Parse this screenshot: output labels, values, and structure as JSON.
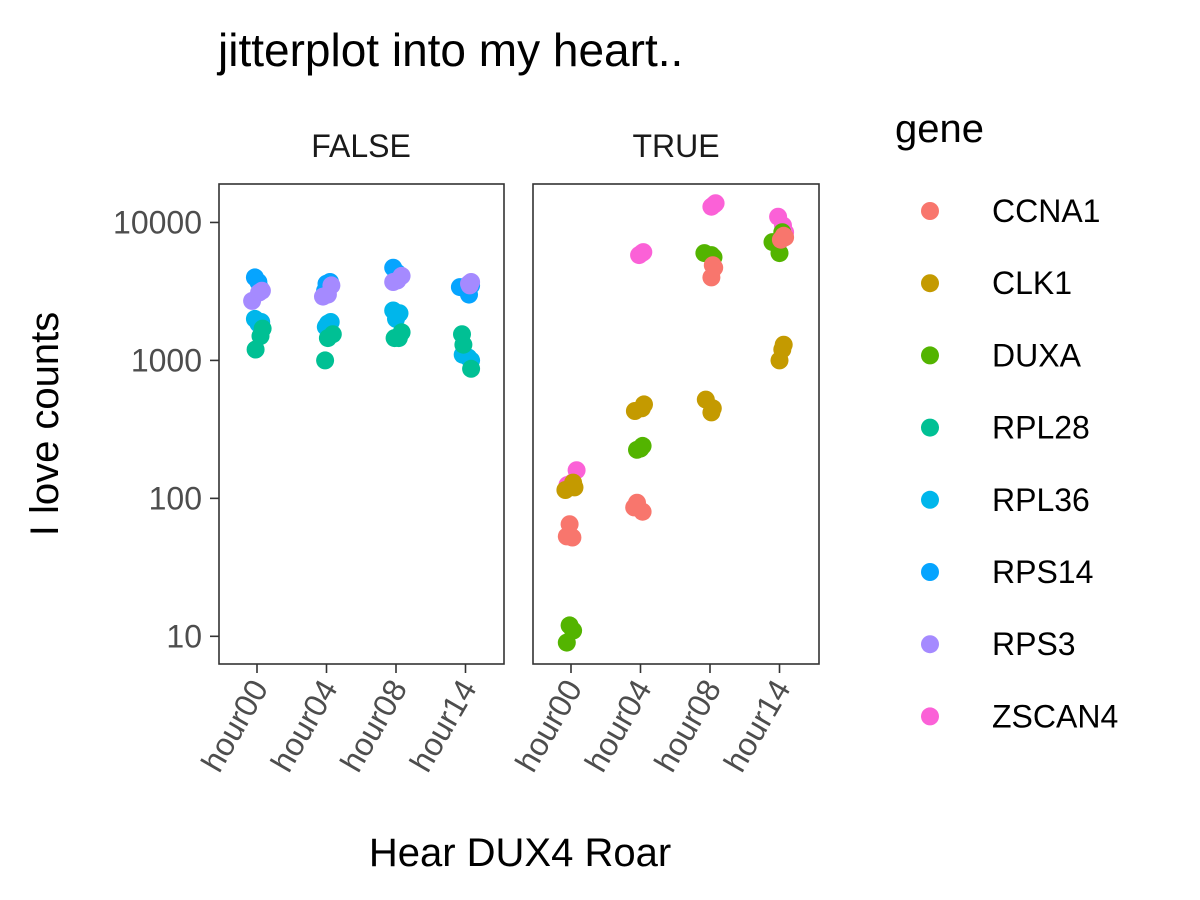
{
  "chart_data": {
    "type": "scatter",
    "title": "jitterplot  into my heart..",
    "xlabel": "Hear DUX4 Roar",
    "ylabel": "I love counts",
    "y_scale": "log10",
    "ylim": [
      6.3,
      19000
    ],
    "yticks": [
      10,
      100,
      1000,
      10000
    ],
    "ytick_labels": [
      "10",
      "100",
      "1000",
      "10000"
    ],
    "categories": [
      "hour00",
      "hour04",
      "hour08",
      "hour14"
    ],
    "facets": [
      "FALSE",
      "TRUE"
    ],
    "grid": false,
    "legend": {
      "title": "gene",
      "position": "right",
      "items": [
        {
          "name": "CCNA1",
          "color": "#F8766D"
        },
        {
          "name": "CLK1",
          "color": "#C49A00"
        },
        {
          "name": "DUXA",
          "color": "#53B400"
        },
        {
          "name": "RPL28",
          "color": "#00C094"
        },
        {
          "name": "RPL36",
          "color": "#00B6EB"
        },
        {
          "name": "RPS14",
          "color": "#06A4FF"
        },
        {
          "name": "RPS3",
          "color": "#A58AFF"
        },
        {
          "name": "ZSCAN4",
          "color": "#FB61D7"
        }
      ]
    },
    "series": [
      {
        "facet": "FALSE",
        "name": "RPS14",
        "points": [
          [
            "hour00",
            -0.03,
            4000
          ],
          [
            "hour00",
            0.02,
            3700
          ],
          [
            "hour00",
            0.05,
            3300
          ],
          [
            "hour04",
            0.0,
            3600
          ],
          [
            "hour04",
            0.05,
            3700
          ],
          [
            "hour04",
            -0.02,
            3200
          ],
          [
            "hour08",
            -0.04,
            4700
          ],
          [
            "hour08",
            0.02,
            4300
          ],
          [
            "hour08",
            0.05,
            4100
          ],
          [
            "hour14",
            -0.08,
            3400
          ],
          [
            "hour14",
            0.05,
            3000
          ],
          [
            "hour14",
            0.08,
            3500
          ]
        ]
      },
      {
        "facet": "FALSE",
        "name": "RPS3",
        "points": [
          [
            "hour00",
            -0.07,
            2700
          ],
          [
            "hour00",
            0.03,
            3100
          ],
          [
            "hour00",
            0.07,
            3200
          ],
          [
            "hour04",
            -0.05,
            2900
          ],
          [
            "hour04",
            0.02,
            3000
          ],
          [
            "hour04",
            0.07,
            3500
          ],
          [
            "hour08",
            -0.04,
            3700
          ],
          [
            "hour08",
            0.02,
            3800
          ],
          [
            "hour08",
            0.08,
            4100
          ],
          [
            "hour14",
            0.05,
            3600
          ],
          [
            "hour14",
            0.08,
            3700
          ],
          [
            "hour14",
            0.06,
            3500
          ]
        ]
      },
      {
        "facet": "FALSE",
        "name": "RPL36",
        "points": [
          [
            "hour00",
            -0.03,
            2000
          ],
          [
            "hour00",
            0.02,
            1850
          ],
          [
            "hour00",
            0.06,
            1900
          ],
          [
            "hour04",
            -0.01,
            1750
          ],
          [
            "hour04",
            0.02,
            1850
          ],
          [
            "hour04",
            0.06,
            1900
          ],
          [
            "hour08",
            -0.04,
            2300
          ],
          [
            "hour08",
            0.0,
            2000
          ],
          [
            "hour08",
            0.05,
            2200
          ],
          [
            "hour14",
            -0.04,
            1100
          ],
          [
            "hour14",
            0.04,
            1050
          ],
          [
            "hour14",
            0.08,
            1000
          ]
        ]
      },
      {
        "facet": "FALSE",
        "name": "RPL28",
        "points": [
          [
            "hour00",
            -0.02,
            1200
          ],
          [
            "hour00",
            0.05,
            1500
          ],
          [
            "hour00",
            0.08,
            1700
          ],
          [
            "hour04",
            -0.02,
            1000
          ],
          [
            "hour04",
            0.02,
            1450
          ],
          [
            "hour04",
            0.09,
            1550
          ],
          [
            "hour08",
            -0.02,
            1450
          ],
          [
            "hour08",
            0.04,
            1450
          ],
          [
            "hour08",
            0.08,
            1600
          ],
          [
            "hour14",
            -0.03,
            1300
          ],
          [
            "hour14",
            -0.05,
            1550
          ],
          [
            "hour14",
            0.08,
            870
          ]
        ]
      },
      {
        "facet": "TRUE",
        "name": "ZSCAN4",
        "points": [
          [
            "hour00",
            -0.05,
            125
          ],
          [
            "hour00",
            0.02,
            130
          ],
          [
            "hour00",
            0.08,
            160
          ],
          [
            "hour04",
            -0.02,
            5800
          ],
          [
            "hour04",
            0.02,
            6000
          ],
          [
            "hour04",
            0.04,
            6100
          ],
          [
            "hour08",
            0.02,
            13000
          ],
          [
            "hour08",
            0.06,
            13500
          ],
          [
            "hour08",
            0.08,
            13800
          ],
          [
            "hour14",
            -0.02,
            11000
          ],
          [
            "hour14",
            0.05,
            9500
          ],
          [
            "hour14",
            0.08,
            8500
          ]
        ]
      },
      {
        "facet": "TRUE",
        "name": "CLK1",
        "points": [
          [
            "hour00",
            -0.08,
            115
          ],
          [
            "hour00",
            0.03,
            130
          ],
          [
            "hour00",
            0.05,
            120
          ],
          [
            "hour04",
            -0.08,
            430
          ],
          [
            "hour04",
            0.02,
            450
          ],
          [
            "hour04",
            0.05,
            480
          ],
          [
            "hour08",
            -0.06,
            520
          ],
          [
            "hour08",
            0.02,
            420
          ],
          [
            "hour08",
            0.04,
            450
          ],
          [
            "hour14",
            0.0,
            1000
          ],
          [
            "hour14",
            0.04,
            1200
          ],
          [
            "hour14",
            0.06,
            1300
          ]
        ]
      },
      {
        "facet": "TRUE",
        "name": "DUXA",
        "points": [
          [
            "hour00",
            -0.06,
            9
          ],
          [
            "hour00",
            -0.02,
            12
          ],
          [
            "hour00",
            0.03,
            11
          ],
          [
            "hour04",
            -0.05,
            225
          ],
          [
            "hour04",
            0.0,
            230
          ],
          [
            "hour04",
            0.03,
            240
          ],
          [
            "hour08",
            -0.08,
            6000
          ],
          [
            "hour08",
            0.02,
            5800
          ],
          [
            "hour08",
            0.05,
            5600
          ],
          [
            "hour14",
            -0.1,
            7200
          ],
          [
            "hour14",
            0.0,
            6000
          ],
          [
            "hour14",
            0.04,
            8500
          ]
        ]
      },
      {
        "facet": "TRUE",
        "name": "CCNA1",
        "points": [
          [
            "hour00",
            -0.06,
            53
          ],
          [
            "hour00",
            -0.02,
            65
          ],
          [
            "hour00",
            0.02,
            52
          ],
          [
            "hour04",
            -0.09,
            86
          ],
          [
            "hour04",
            -0.05,
            93
          ],
          [
            "hour04",
            0.03,
            80
          ],
          [
            "hour08",
            0.02,
            4000
          ],
          [
            "hour08",
            0.04,
            4900
          ],
          [
            "hour08",
            0.06,
            4700
          ],
          [
            "hour14",
            0.02,
            7500
          ],
          [
            "hour14",
            0.06,
            8000
          ],
          [
            "hour14",
            0.08,
            7800
          ]
        ]
      }
    ]
  }
}
